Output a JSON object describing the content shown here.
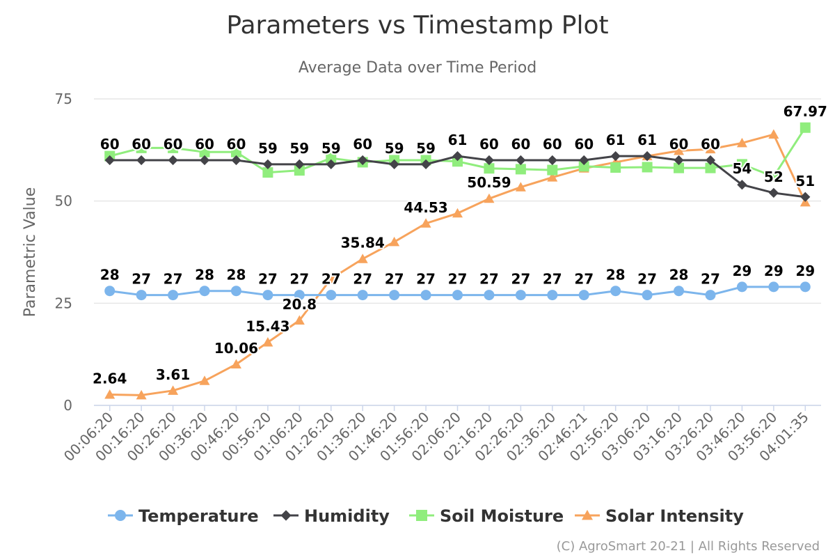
{
  "chart_data": {
    "type": "line",
    "title": "Parameters vs Timestamp Plot",
    "subtitle": "Average Data over Time Period",
    "xlabel": "",
    "ylabel": "Parametric Value",
    "ylim": [
      0,
      75
    ],
    "yticks": [
      "0",
      "25",
      "50",
      "75"
    ],
    "grid": true,
    "legend_position": "bottom",
    "credits": "(C) AgroSmart 20-21 | All Rights Reserved",
    "categories": [
      "00:06:20",
      "00:16:20",
      "00:26:20",
      "00:36:20",
      "00:46:20",
      "00:56:20",
      "01:06:20",
      "01:26:20",
      "01:36:20",
      "01:46:20",
      "01:56:20",
      "02:06:20",
      "02:16:20",
      "02:26:20",
      "02:36:20",
      "02:46:21",
      "02:56:20",
      "03:06:20",
      "03:16:20",
      "03:26:20",
      "03:46:20",
      "03:56:20",
      "04:01:35"
    ],
    "series": [
      {
        "name": "Temperature",
        "color": "#7cb5ec",
        "marker": "circle",
        "values": [
          28,
          27,
          27,
          28,
          28,
          27,
          27,
          27,
          27,
          27,
          27,
          27,
          27,
          27,
          27,
          27,
          28,
          27,
          28,
          27,
          29,
          29,
          29
        ],
        "labels": [
          "28",
          "27",
          "27",
          "28",
          "28",
          "27",
          "27",
          "27",
          "27",
          "27",
          "27",
          "27",
          "27",
          "27",
          "27",
          "27",
          "28",
          "27",
          "28",
          "27",
          "29",
          "29",
          "29"
        ]
      },
      {
        "name": "Humidity",
        "color": "#434348",
        "marker": "diamond",
        "values": [
          60,
          60,
          60,
          60,
          60,
          59,
          59,
          59,
          60,
          59,
          59,
          61,
          60,
          60,
          60,
          60,
          61,
          61,
          60,
          60,
          54,
          52,
          51
        ],
        "labels": [
          "60",
          "60",
          "60",
          "60",
          "60",
          "59",
          "59",
          "59",
          "60",
          "59",
          "59",
          "61",
          "60",
          "60",
          "60",
          "60",
          "61",
          "61",
          "60",
          "60",
          "54",
          "52",
          "51"
        ]
      },
      {
        "name": "Soil Moisture",
        "color": "#90ed7d",
        "marker": "square",
        "values": [
          61,
          63,
          63,
          62,
          62,
          57,
          57.5,
          60.5,
          59.5,
          60,
          60,
          59.7,
          58,
          57.8,
          57.6,
          58.5,
          58.2,
          58.3,
          58.1,
          58.1,
          59,
          56,
          67.97
        ],
        "labels": [
          "",
          "",
          "",
          "",
          "",
          "",
          "",
          "",
          "",
          "",
          "",
          "",
          "",
          "",
          "",
          "",
          "",
          "",
          "",
          "",
          "",
          "",
          "67.97"
        ]
      },
      {
        "name": "Solar Intensity",
        "color": "#f7a35c",
        "marker": "triangle",
        "values": [
          2.64,
          2.5,
          3.61,
          6,
          10.06,
          15.43,
          20.8,
          31,
          35.84,
          40,
          44.53,
          47,
          50.59,
          53.4,
          55.8,
          58,
          59.5,
          61,
          62.3,
          62.7,
          64.2,
          66.3,
          49.7
        ],
        "labels": [
          "2.64",
          "",
          "3.61",
          "",
          "10.06",
          "15.43",
          "20.8",
          "",
          "35.84",
          "",
          "44.53",
          "",
          "50.59",
          "",
          "",
          "",
          "",
          "",
          "",
          "",
          "",
          "",
          ""
        ]
      }
    ]
  }
}
